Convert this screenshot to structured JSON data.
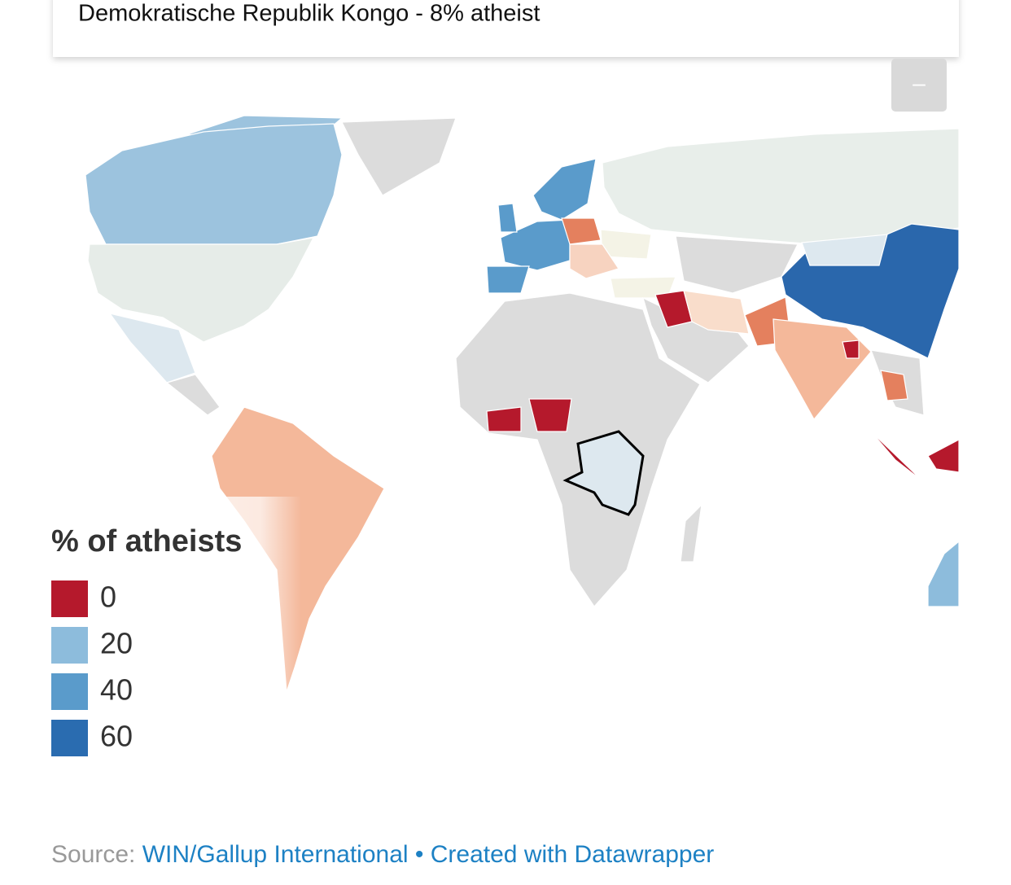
{
  "tooltip": {
    "text": "Demokratische Republik Kongo - 8% atheist"
  },
  "zoom_button": {
    "label": "–"
  },
  "legend": {
    "title": "% of atheists",
    "items": [
      {
        "value": 0,
        "color": "#b5192c"
      },
      {
        "value": 20,
        "color": "#8dbcdc"
      },
      {
        "value": 40,
        "color": "#5a9bcb"
      },
      {
        "value": 60,
        "color": "#2a6cb0"
      }
    ]
  },
  "footer": {
    "source_label": "Source:",
    "source": "WIN/Gallup International",
    "separator": "•",
    "credit": "Created with Datawrapper"
  }
}
